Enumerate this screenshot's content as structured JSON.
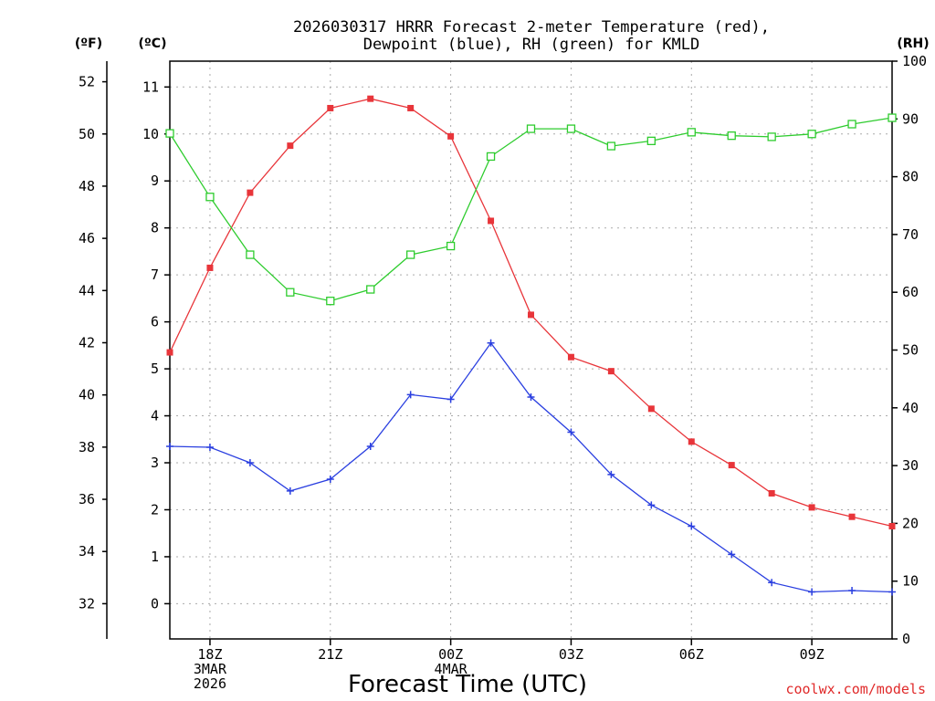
{
  "chart_data": {
    "type": "line",
    "title_lines": [
      "2026030317 HRRR Forecast 2-meter Temperature (red),",
      "Dewpoint (blue), RH (green) for KMLD"
    ],
    "xlabel": "Forecast Time (UTC)",
    "credit": "coolwx.com/models",
    "units": {
      "fahrenheit": "(ºF)",
      "celsius": "(ºC)",
      "rh": "(RH)"
    },
    "x_hours": [
      0,
      1,
      2,
      3,
      4,
      5,
      6,
      7,
      8,
      9,
      10,
      11,
      12,
      13,
      14,
      15,
      16,
      17,
      18
    ],
    "x_ticks": [
      {
        "hour": 1,
        "lines": [
          "18Z",
          "3MAR",
          "2026"
        ]
      },
      {
        "hour": 4,
        "lines": [
          "21Z"
        ]
      },
      {
        "hour": 7,
        "lines": [
          "00Z",
          "4MAR"
        ]
      },
      {
        "hour": 10,
        "lines": [
          "03Z"
        ]
      },
      {
        "hour": 13,
        "lines": [
          "06Z"
        ]
      },
      {
        "hour": 16,
        "lines": [
          "09Z"
        ]
      }
    ],
    "celsius_ticks": [
      0,
      1,
      2,
      3,
      4,
      5,
      6,
      7,
      8,
      9,
      10,
      11
    ],
    "fahrenheit_ticks": [
      32,
      34,
      36,
      38,
      40,
      42,
      44,
      46,
      48,
      50,
      52
    ],
    "rh_ticks": [
      0,
      10,
      20,
      30,
      40,
      50,
      60,
      70,
      80,
      90,
      100
    ],
    "ylim_celsius": [
      -0.75,
      11.55
    ],
    "ylim_rh": [
      0,
      100
    ],
    "series": [
      {
        "name": "Temperature",
        "color": "#e8353a",
        "axis": "celsius",
        "marker": "filled-square",
        "values": [
          5.35,
          7.15,
          8.75,
          9.75,
          10.55,
          10.75,
          10.55,
          9.95,
          8.15,
          6.15,
          5.25,
          4.95,
          4.15,
          3.45,
          2.95,
          2.35,
          2.05,
          1.85,
          1.65
        ]
      },
      {
        "name": "Dewpoint",
        "color": "#2a3fe0",
        "axis": "celsius",
        "marker": "plus",
        "values": [
          3.35,
          3.33,
          3.0,
          2.4,
          2.65,
          3.35,
          4.45,
          4.35,
          5.55,
          4.4,
          3.65,
          2.75,
          2.1,
          1.65,
          1.05,
          0.45,
          0.25,
          0.28,
          0.25
        ]
      },
      {
        "name": "Relative Humidity",
        "color": "#2ecc2e",
        "axis": "rh",
        "marker": "open-square",
        "values": [
          87.5,
          76.5,
          66.5,
          60.0,
          58.5,
          60.5,
          66.5,
          68.0,
          83.5,
          88.3,
          88.3,
          85.3,
          86.2,
          87.7,
          87.1,
          86.9,
          87.4,
          89.1,
          90.2
        ]
      }
    ]
  }
}
